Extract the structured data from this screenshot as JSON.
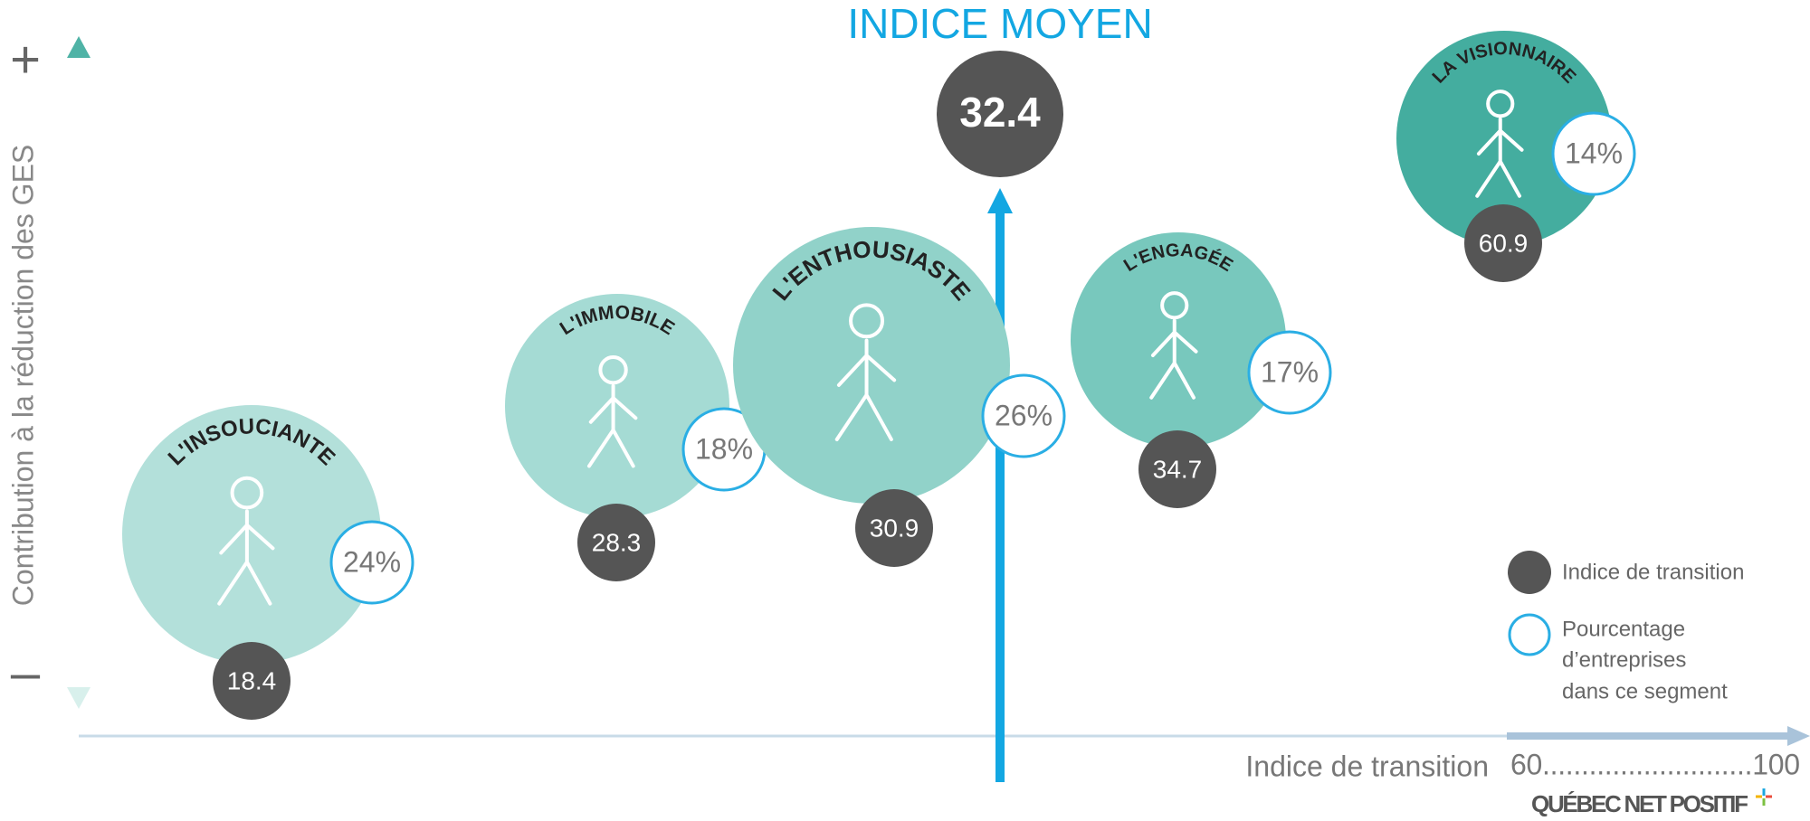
{
  "header": {
    "title": "INDICE MOYEN",
    "average": "32.4"
  },
  "y_axis": {
    "label": "Contribution à la réduction des GES",
    "top": "+",
    "bottom": "–"
  },
  "x_axis": {
    "label": "Indice de transition",
    "scale": "60...........................100"
  },
  "segments": [
    {
      "name": "L'INSOUCIANTE",
      "percent": "24%",
      "index": "18.4",
      "color": "#b3e0da"
    },
    {
      "name": "L'IMMOBILE",
      "percent": "18%",
      "index": "28.3",
      "color": "#a5dbd4"
    },
    {
      "name": "L'ENTHOUSIASTE",
      "percent": "26%",
      "index": "30.9",
      "color": "#91d2c9"
    },
    {
      "name": "L'ENGAGÉE",
      "percent": "17%",
      "index": "34.7",
      "color": "#78c8bd"
    },
    {
      "name": "LA VISIONNAIRE",
      "percent": "14%",
      "index": "60.9",
      "color": "#44ad9f"
    }
  ],
  "legend": {
    "index": "Indice de transition",
    "percent": [
      "Pourcentage",
      "d’entreprises",
      "dans ce segment"
    ]
  },
  "logo": "QUÉBEC NET POSITIF"
}
